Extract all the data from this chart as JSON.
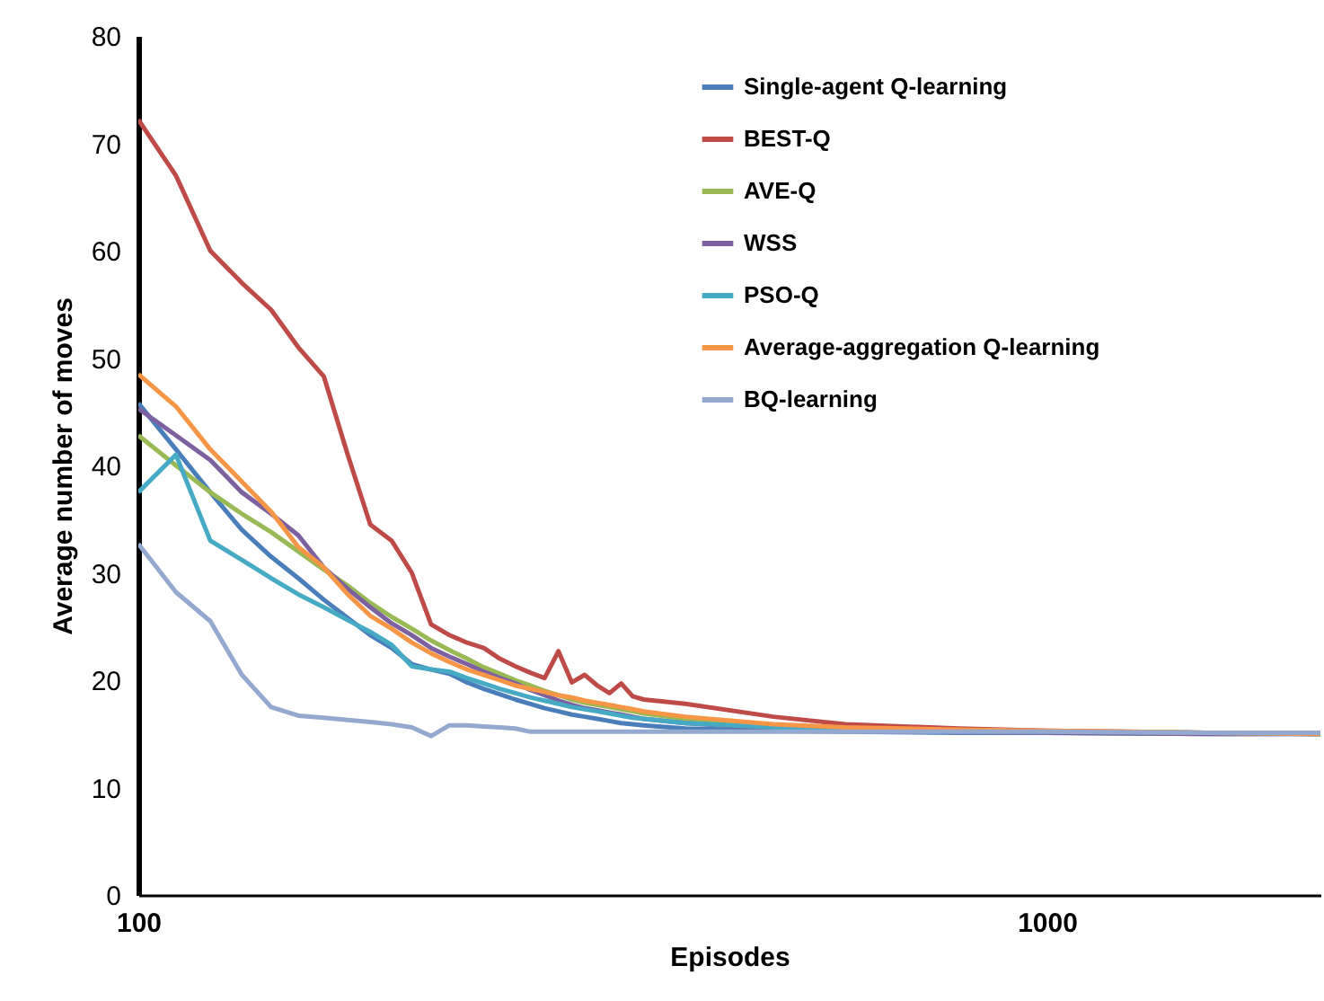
{
  "chart_data": {
    "type": "line",
    "xlabel": "Episodes",
    "ylabel": "Average number of moves",
    "log": "x",
    "grid": false,
    "legend": "top right",
    "marker": "none",
    "line_style": "solid",
    "x": [
      100,
      110,
      120,
      130,
      140,
      150,
      160,
      170,
      180,
      190,
      200,
      210,
      220,
      230,
      240,
      250,
      260,
      270,
      280,
      290,
      300,
      310,
      320,
      330,
      340,
      350,
      360,
      400,
      500,
      600,
      800,
      1000,
      1500,
      2000
    ],
    "xlim": [
      100,
      2000
    ],
    "xticks": [
      100,
      1000
    ],
    "ylim": [
      0,
      80
    ],
    "yticks": [
      0,
      10,
      20,
      30,
      40,
      50,
      60,
      70,
      80
    ],
    "series": [
      {
        "name": "Single-agent Q-learning",
        "color": "#4a7ebb",
        "values": [
          45.8,
          41.5,
          37.5,
          34,
          31.5,
          29.5,
          27.5,
          25.8,
          24.2,
          23,
          21.5,
          21,
          20.6,
          19.8,
          19.2,
          18.7,
          18.2,
          17.8,
          17.4,
          17.1,
          16.8,
          16.6,
          16.4,
          16.2,
          16.0,
          15.9,
          15.8,
          15.5,
          15.3,
          15.2,
          15.1,
          15.1,
          15.0,
          15.0
        ]
      },
      {
        "name": "BEST-Q",
        "color": "#be4b48",
        "values": [
          72.2,
          67,
          60,
          57,
          54.5,
          51,
          48.3,
          41,
          34.5,
          33,
          30,
          25.2,
          24.2,
          23.5,
          23,
          22,
          21.3,
          20.7,
          20.2,
          22.7,
          19.8,
          20.5,
          19.5,
          18.8,
          19.7,
          18.5,
          18.2,
          17.8,
          16.6,
          15.9,
          15.5,
          15.3,
          15.1,
          15.0
        ]
      },
      {
        "name": "AVE-Q",
        "color": "#98b954",
        "values": [
          42.8,
          40,
          37.5,
          35.5,
          33.8,
          32,
          30.3,
          28.8,
          27.2,
          25.9,
          24.8,
          23.7,
          22.8,
          22,
          21.2,
          20.6,
          20,
          19.5,
          19.0,
          18.6,
          18.2,
          17.9,
          17.7,
          17.5,
          17.3,
          17.1,
          16.9,
          16.4,
          15.8,
          15.5,
          15.3,
          15.2,
          15.1,
          15.0
        ]
      },
      {
        "name": "WSS",
        "color": "#7d60a0",
        "values": [
          45.3,
          42.8,
          40.5,
          37.5,
          35.5,
          33.5,
          30.5,
          28.5,
          26.8,
          25.3,
          24.2,
          23,
          22.2,
          21.5,
          20.8,
          20.2,
          19.7,
          19.1,
          18.6,
          18.1,
          17.7,
          17.4,
          17.2,
          17.0,
          16.8,
          16.6,
          16.4,
          16.0,
          15.5,
          15.3,
          15.2,
          15.1,
          15.0,
          15.0
        ]
      },
      {
        "name": "PSO-Q",
        "color": "#46aac5",
        "values": [
          37.5,
          41,
          33,
          31.2,
          29.5,
          28,
          26.8,
          25.6,
          24.5,
          23.3,
          21.3,
          21,
          20.8,
          20.2,
          19.7,
          19.2,
          18.8,
          18.4,
          18.1,
          17.8,
          17.5,
          17.3,
          17.1,
          16.9,
          16.7,
          16.5,
          16.4,
          16.0,
          15.6,
          15.4,
          15.3,
          15.2,
          15.1,
          15.0
        ]
      },
      {
        "name": "Average-aggregation Q-learning",
        "color": "#f79646",
        "values": [
          48.5,
          45.5,
          41.5,
          38.5,
          35.7,
          32.4,
          30.5,
          28,
          26,
          24.8,
          23.5,
          22.5,
          21.7,
          21,
          20.5,
          20,
          19.5,
          19.2,
          18.9,
          18.6,
          18.4,
          18.1,
          17.9,
          17.7,
          17.5,
          17.3,
          17.1,
          16.6,
          15.9,
          15.6,
          15.4,
          15.3,
          15.1,
          15.0
        ]
      },
      {
        "name": "BQ-learning",
        "color": "#93a9cf",
        "values": [
          32.7,
          28.2,
          25.5,
          20.5,
          17.5,
          16.7,
          16.5,
          16.3,
          16.1,
          15.9,
          15.6,
          14.8,
          15.8,
          15.8,
          15.7,
          15.6,
          15.5,
          15.2,
          15.2,
          15.2,
          15.2,
          15.2,
          15.2,
          15.2,
          15.2,
          15.2,
          15.2,
          15.2,
          15.2,
          15.2,
          15.2,
          15.2,
          15.1,
          15.1
        ]
      }
    ]
  }
}
